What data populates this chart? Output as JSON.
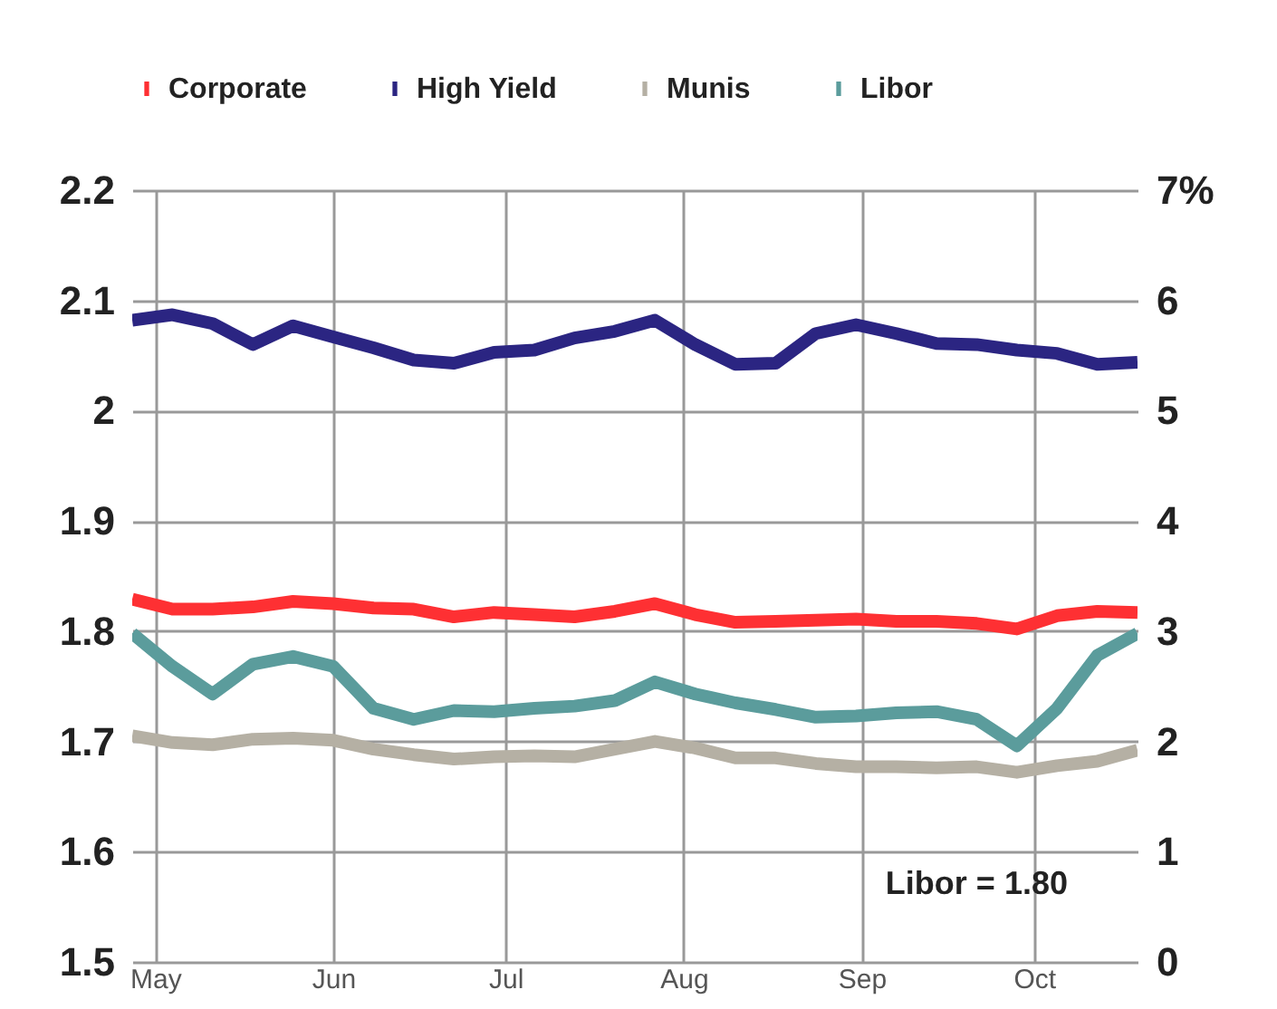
{
  "chart_data": {
    "type": "line",
    "x": [
      "--04-27",
      "--05-04",
      "--05-11",
      "--05-18",
      "--05-25",
      "--06-01",
      "--06-08",
      "--06-15",
      "--06-22",
      "--06-29",
      "--07-06",
      "--07-13",
      "--07-20",
      "--07-27",
      "--08-03",
      "--08-10",
      "--08-17",
      "--08-24",
      "--08-31",
      "--09-07",
      "--09-14",
      "--09-21",
      "--09-28",
      "--10-05",
      "--10-12",
      "--10-19"
    ],
    "xlim": [
      "--04-27",
      "--10-19"
    ],
    "xticks": [
      {
        "value": "--05-01",
        "label": "May"
      },
      {
        "value": "--06-01",
        "label": "Jun"
      },
      {
        "value": "--07-01",
        "label": "Jul"
      },
      {
        "value": "--08-01",
        "label": "Aug"
      },
      {
        "value": "--09-01",
        "label": "Sep"
      },
      {
        "value": "--10-01",
        "label": "Oct"
      }
    ],
    "ylim": [
      1.5,
      2.2
    ],
    "yticks": [
      1.5,
      1.6,
      1.7,
      1.8,
      1.9,
      2,
      2.1,
      2.2
    ],
    "y2lim": [
      0,
      7
    ],
    "y2ticks": [
      0,
      1,
      2,
      3,
      4,
      5,
      6,
      {
        "value": 7,
        "label": "7%"
      }
    ],
    "grid": true,
    "legend": "top",
    "series": [
      {
        "name": "Corporate",
        "color": "#fe3033",
        "axis": "y2",
        "values": [
          3.29,
          3.2,
          3.2,
          3.22,
          3.27,
          3.25,
          3.21,
          3.2,
          3.13,
          3.17,
          3.15,
          3.13,
          3.18,
          3.25,
          3.15,
          3.08,
          3.09,
          3.1,
          3.11,
          3.09,
          3.09,
          3.07,
          3.02,
          3.14,
          3.18,
          3.17
        ]
      },
      {
        "name": "High Yield",
        "color": "#2b2582",
        "axis": "y2",
        "values": [
          5.82,
          5.87,
          5.79,
          5.6,
          5.77,
          5.67,
          5.57,
          5.46,
          5.43,
          5.53,
          5.55,
          5.66,
          5.72,
          5.82,
          5.6,
          5.42,
          5.43,
          5.7,
          5.78,
          5.7,
          5.61,
          5.6,
          5.55,
          5.52,
          5.42,
          5.44
        ]
      },
      {
        "name": "Munis",
        "color": "#b5b0a4",
        "axis": "y2",
        "values": [
          2.05,
          1.99,
          1.97,
          2.02,
          2.03,
          2.01,
          1.93,
          1.88,
          1.84,
          1.86,
          1.87,
          1.86,
          1.93,
          2.0,
          1.94,
          1.85,
          1.85,
          1.8,
          1.77,
          1.77,
          1.76,
          1.77,
          1.72,
          1.78,
          1.82,
          1.92
        ]
      },
      {
        "name": "Libor",
        "color": "#5b9c9c",
        "axis": "y",
        "values": [
          1.798,
          1.768,
          1.743,
          1.77,
          1.777,
          1.768,
          1.73,
          1.72,
          1.728,
          1.727,
          1.73,
          1.732,
          1.737,
          1.754,
          1.743,
          1.735,
          1.729,
          1.722,
          1.723,
          1.726,
          1.727,
          1.72,
          1.696,
          1.73,
          1.778,
          1.798
        ]
      }
    ],
    "annotations": [
      "Libor = 1.80"
    ]
  }
}
